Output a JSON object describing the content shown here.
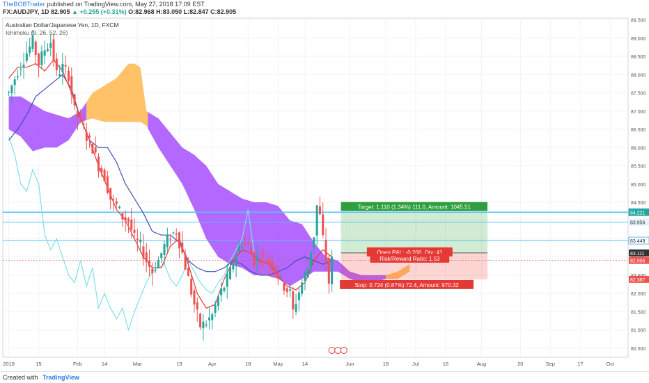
{
  "header": {
    "author": "TheBOBTrader",
    "published_text": "published on TradingView.com, May 27, 2018 17:09 EST",
    "symbol": "FX:AUDJPY, 1D",
    "last": "82.905",
    "change_arrow": "▲",
    "change": "+0.255 (+0.31%)",
    "ohlc": "O:82.968 H:83.050 L:82.847 C:82.905"
  },
  "footer": {
    "created_with": "Created with",
    "brand": "TradingView"
  },
  "colors": {
    "up": "#26a69a",
    "down": "#ef5350",
    "cloud_bull": "#ffb74d",
    "cloud_bear": "#a64dff",
    "tenkan": "#e53935",
    "kijun": "#3f51b5",
    "chikou": "#80deea",
    "hline": "#4fc3f7",
    "target": "#4caf50",
    "stop": "#f44336"
  },
  "chart_data": {
    "type": "candlestick",
    "title": "Australian Dollar/Japanese Yen, 1D, FXCM",
    "indicator": "Ichimoku (9, 26, 52, 26)",
    "ylim": [
      80.25,
      89.55
    ],
    "y_ticks": [
      "89.500",
      "89.000",
      "88.500",
      "88.000",
      "87.500",
      "87.000",
      "86.500",
      "86.000",
      "85.500",
      "85.000",
      "84.500",
      "84.000",
      "83.500",
      "83.000",
      "82.500",
      "82.000",
      "81.500",
      "81.000",
      "80.500"
    ],
    "x_ticks": [
      {
        "label": "2018",
        "day": 0
      },
      {
        "label": "15",
        "day": 10
      },
      {
        "label": "Feb",
        "day": 23
      },
      {
        "label": "14",
        "day": 32
      },
      {
        "label": "Mar",
        "day": 43
      },
      {
        "label": "19",
        "day": 57
      },
      {
        "label": "Apr",
        "day": 68
      },
      {
        "label": "18",
        "day": 80
      },
      {
        "label": "May",
        "day": 90
      },
      {
        "label": "14",
        "day": 99
      },
      {
        "label": "Jun",
        "day": 114
      },
      {
        "label": "18",
        "day": 126
      },
      {
        "label": "Jul",
        "day": 136
      },
      {
        "label": "16",
        "day": 146
      },
      {
        "label": "Aug",
        "day": 158
      },
      {
        "label": "20",
        "day": 171
      },
      {
        "label": "Sep",
        "day": 181
      },
      {
        "label": "17",
        "day": 191
      },
      {
        "label": "Oct",
        "day": 201
      }
    ],
    "price_points": [
      [
        0,
        87.5
      ],
      [
        3,
        88.1
      ],
      [
        6,
        88.6
      ],
      [
        8,
        88.9
      ],
      [
        10,
        88.3
      ],
      [
        12,
        88.7
      ],
      [
        14,
        88.9
      ],
      [
        16,
        88.0
      ],
      [
        18,
        88.2
      ],
      [
        20,
        88.0
      ],
      [
        22,
        87.0
      ],
      [
        24,
        86.7
      ],
      [
        26,
        86.3
      ],
      [
        28,
        86.0
      ],
      [
        30,
        85.5
      ],
      [
        32,
        85.2
      ],
      [
        34,
        84.6
      ],
      [
        36,
        84.4
      ],
      [
        38,
        84.1
      ],
      [
        40,
        84.0
      ],
      [
        42,
        83.5
      ],
      [
        44,
        83.3
      ],
      [
        46,
        82.9
      ],
      [
        48,
        82.6
      ],
      [
        50,
        82.9
      ],
      [
        52,
        83.3
      ],
      [
        54,
        83.6
      ],
      [
        56,
        83.7
      ],
      [
        58,
        83.1
      ],
      [
        60,
        82.4
      ],
      [
        62,
        81.7
      ],
      [
        64,
        81.1
      ],
      [
        66,
        81.2
      ],
      [
        68,
        81.4
      ],
      [
        70,
        81.9
      ],
      [
        72,
        82.2
      ],
      [
        74,
        82.6
      ],
      [
        76,
        83.1
      ],
      [
        78,
        83.4
      ],
      [
        80,
        83.3
      ],
      [
        82,
        82.9
      ],
      [
        84,
        83.0
      ],
      [
        86,
        82.9
      ],
      [
        88,
        82.8
      ],
      [
        90,
        82.5
      ],
      [
        92,
        82.2
      ],
      [
        94,
        82.0
      ],
      [
        95,
        81.5
      ],
      [
        96,
        81.8
      ],
      [
        98,
        82.3
      ],
      [
        100,
        82.7
      ],
      [
        101,
        83.2
      ],
      [
        102,
        83.6
      ],
      [
        103,
        84.4
      ],
      [
        104,
        84.1
      ],
      [
        105,
        83.5
      ],
      [
        106,
        82.9
      ],
      [
        107,
        82.3
      ],
      [
        108,
        82.9
      ]
    ],
    "tenkan": [
      [
        0,
        87.9
      ],
      [
        3,
        88.2
      ],
      [
        6,
        88.2
      ],
      [
        9,
        88.3
      ],
      [
        12,
        88.1
      ],
      [
        15,
        88.4
      ],
      [
        18,
        88.1
      ],
      [
        21,
        87.5
      ],
      [
        24,
        86.8
      ],
      [
        27,
        86.2
      ],
      [
        30,
        85.5
      ],
      [
        33,
        84.9
      ],
      [
        36,
        84.3
      ],
      [
        39,
        84.0
      ],
      [
        42,
        83.5
      ],
      [
        45,
        83.0
      ],
      [
        48,
        82.7
      ],
      [
        51,
        82.7
      ],
      [
        54,
        83.3
      ],
      [
        57,
        83.5
      ],
      [
        60,
        82.8
      ],
      [
        63,
        82.0
      ],
      [
        66,
        81.6
      ],
      [
        69,
        81.7
      ],
      [
        72,
        82.4
      ],
      [
        75,
        82.9
      ],
      [
        78,
        83.2
      ],
      [
        81,
        83.1
      ],
      [
        84,
        82.9
      ],
      [
        87,
        82.8
      ],
      [
        90,
        82.5
      ],
      [
        93,
        82.2
      ],
      [
        96,
        82.1
      ],
      [
        99,
        82.3
      ],
      [
        102,
        82.9
      ],
      [
        105,
        83.2
      ],
      [
        108,
        83.0
      ]
    ],
    "kijun": [
      [
        0,
        86.2
      ],
      [
        3,
        86.5
      ],
      [
        6,
        86.9
      ],
      [
        9,
        87.4
      ],
      [
        12,
        87.6
      ],
      [
        15,
        87.8
      ],
      [
        18,
        88.0
      ],
      [
        21,
        87.6
      ],
      [
        24,
        86.8
      ],
      [
        27,
        86.2
      ],
      [
        30,
        86.0
      ],
      [
        33,
        86.0
      ],
      [
        36,
        85.6
      ],
      [
        39,
        85.0
      ],
      [
        42,
        84.6
      ],
      [
        45,
        84.2
      ],
      [
        48,
        83.7
      ],
      [
        51,
        83.6
      ],
      [
        54,
        83.6
      ],
      [
        57,
        83.4
      ],
      [
        60,
        82.9
      ],
      [
        63,
        82.7
      ],
      [
        66,
        82.6
      ],
      [
        69,
        82.6
      ],
      [
        72,
        82.7
      ],
      [
        75,
        82.9
      ],
      [
        78,
        82.8
      ],
      [
        81,
        82.6
      ],
      [
        84,
        82.5
      ],
      [
        87,
        82.5
      ],
      [
        90,
        82.6
      ],
      [
        93,
        82.7
      ],
      [
        96,
        82.9
      ],
      [
        99,
        83.0
      ],
      [
        102,
        82.9
      ],
      [
        105,
        82.8
      ],
      [
        108,
        82.9
      ]
    ],
    "chikou": [
      [
        0,
        86.3
      ],
      [
        2,
        85.8
      ],
      [
        4,
        85.0
      ],
      [
        6,
        84.8
      ],
      [
        8,
        85.4
      ],
      [
        10,
        85.0
      ],
      [
        12,
        83.6
      ],
      [
        14,
        83.2
      ],
      [
        16,
        83.5
      ],
      [
        18,
        83.0
      ],
      [
        20,
        82.5
      ],
      [
        22,
        82.3
      ],
      [
        24,
        82.9
      ],
      [
        26,
        82.2
      ],
      [
        28,
        82.7
      ],
      [
        30,
        81.6
      ],
      [
        32,
        82.0
      ],
      [
        34,
        81.6
      ],
      [
        36,
        81.3
      ],
      [
        38,
        81.6
      ],
      [
        40,
        81.0
      ],
      [
        42,
        81.5
      ],
      [
        44,
        81.9
      ],
      [
        46,
        82.3
      ],
      [
        48,
        82.6
      ],
      [
        50,
        82.7
      ],
      [
        52,
        82.8
      ],
      [
        54,
        82.4
      ],
      [
        56,
        82.2
      ],
      [
        58,
        82.5
      ],
      [
        60,
        82.9
      ],
      [
        62,
        82.6
      ],
      [
        64,
        82.3
      ],
      [
        66,
        82.1
      ],
      [
        68,
        82.0
      ],
      [
        70,
        82.3
      ],
      [
        72,
        82.5
      ],
      [
        74,
        82.9
      ],
      [
        76,
        83.2
      ],
      [
        78,
        83.5
      ],
      [
        80,
        84.3
      ],
      [
        82,
        83.1
      ]
    ],
    "cloud_top": [
      [
        0,
        87.4
      ],
      [
        4,
        87.4
      ],
      [
        8,
        87.2
      ],
      [
        12,
        87.0
      ],
      [
        16,
        86.9
      ],
      [
        20,
        86.8
      ],
      [
        24,
        87.0
      ],
      [
        28,
        87.5
      ],
      [
        32,
        87.7
      ],
      [
        36,
        87.9
      ],
      [
        40,
        88.3
      ],
      [
        42,
        88.3
      ],
      [
        44,
        88.2
      ],
      [
        46,
        87.0
      ],
      [
        50,
        86.8
      ],
      [
        54,
        86.4
      ],
      [
        58,
        86.0
      ],
      [
        62,
        85.8
      ],
      [
        66,
        85.5
      ],
      [
        70,
        85.0
      ],
      [
        74,
        84.8
      ],
      [
        78,
        84.6
      ],
      [
        82,
        84.5
      ],
      [
        86,
        84.5
      ],
      [
        90,
        84.4
      ],
      [
        94,
        84.0
      ],
      [
        98,
        83.9
      ],
      [
        102,
        83.4
      ],
      [
        106,
        83.0
      ],
      [
        110,
        82.9
      ],
      [
        114,
        82.6
      ],
      [
        118,
        82.5
      ],
      [
        122,
        82.5
      ],
      [
        126,
        82.5
      ],
      [
        130,
        82.6
      ],
      [
        134,
        82.8
      ]
    ],
    "cloud_bottom": [
      [
        0,
        86.5
      ],
      [
        4,
        86.3
      ],
      [
        8,
        85.9
      ],
      [
        12,
        86.0
      ],
      [
        16,
        86.0
      ],
      [
        20,
        86.2
      ],
      [
        24,
        86.7
      ],
      [
        28,
        86.8
      ],
      [
        32,
        86.7
      ],
      [
        36,
        86.7
      ],
      [
        40,
        86.7
      ],
      [
        44,
        86.7
      ],
      [
        46,
        86.6
      ],
      [
        50,
        86.0
      ],
      [
        54,
        85.5
      ],
      [
        58,
        85.0
      ],
      [
        62,
        84.3
      ],
      [
        66,
        83.5
      ],
      [
        70,
        83.0
      ],
      [
        74,
        82.8
      ],
      [
        78,
        82.7
      ],
      [
        82,
        82.5
      ],
      [
        86,
        82.5
      ],
      [
        90,
        82.4
      ],
      [
        94,
        82.2
      ],
      [
        98,
        82.4
      ],
      [
        102,
        82.6
      ],
      [
        106,
        82.6
      ],
      [
        110,
        82.6
      ],
      [
        114,
        82.4
      ],
      [
        118,
        82.3
      ],
      [
        122,
        82.3
      ],
      [
        126,
        82.4
      ],
      [
        130,
        82.4
      ],
      [
        134,
        82.6
      ]
    ],
    "hlines": [
      84.233,
      84.221,
      83.956,
      83.449
    ],
    "axis_marks": [
      {
        "label": "84.233",
        "value": 84.233,
        "bg": "#ffffff",
        "fg": "#333333"
      },
      {
        "label": "84.221",
        "value": 84.221,
        "bg": "#26a69a",
        "fg": "#ffffff"
      },
      {
        "label": "83.956",
        "value": 83.956,
        "bg": "#e3f2fd",
        "fg": "#333333"
      },
      {
        "label": "83.449",
        "value": 83.449,
        "bg": "#ffffff",
        "fg": "#333333"
      },
      {
        "label": "83.111",
        "value": 83.111,
        "bg": "#333333",
        "fg": "#ffffff"
      },
      {
        "label": "82.905",
        "value": 82.905,
        "bg": "#ef5350",
        "fg": "#ffffff"
      },
      {
        "label": "82.387",
        "value": 82.387,
        "bg": "#ef5350",
        "fg": "#ffffff"
      }
    ],
    "position": {
      "entry": 83.111,
      "target": 84.221,
      "stop": 82.387,
      "start_day": 111,
      "end_day": 160,
      "target_label": "Target: 1.110 (1.34%) 111.0, Amount: 1045.51",
      "open_pnl_label": "Open P&L: -0.206, Qty: 41",
      "rr_label": "Risk/Reward Ratio: 1.53",
      "stop_label": "Stop: 0.724 (0.87%) 72.4, Amount: 970.32"
    }
  }
}
